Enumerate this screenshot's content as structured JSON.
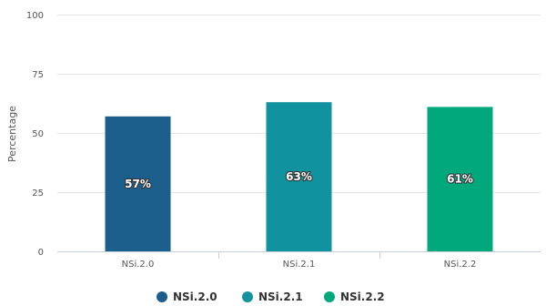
{
  "chart_data": {
    "type": "bar",
    "categories": [
      "NSi.2.0",
      "NSi.2.1",
      "NSi.2.2"
    ],
    "values": [
      57,
      63,
      61
    ],
    "data_labels": [
      "57%",
      "63%",
      "61%"
    ],
    "ylabel": "Percentage",
    "ylim": [
      0,
      100
    ],
    "yticks": [
      0,
      25,
      50,
      75,
      100
    ],
    "grid": true,
    "legend_placement": "bottom",
    "series": [
      {
        "name": "NSi.2.0",
        "color": "#1c5f8c"
      },
      {
        "name": "NSi.2.1",
        "color": "#10929f"
      },
      {
        "name": "NSi.2.2",
        "color": "#00a87c"
      }
    ]
  }
}
